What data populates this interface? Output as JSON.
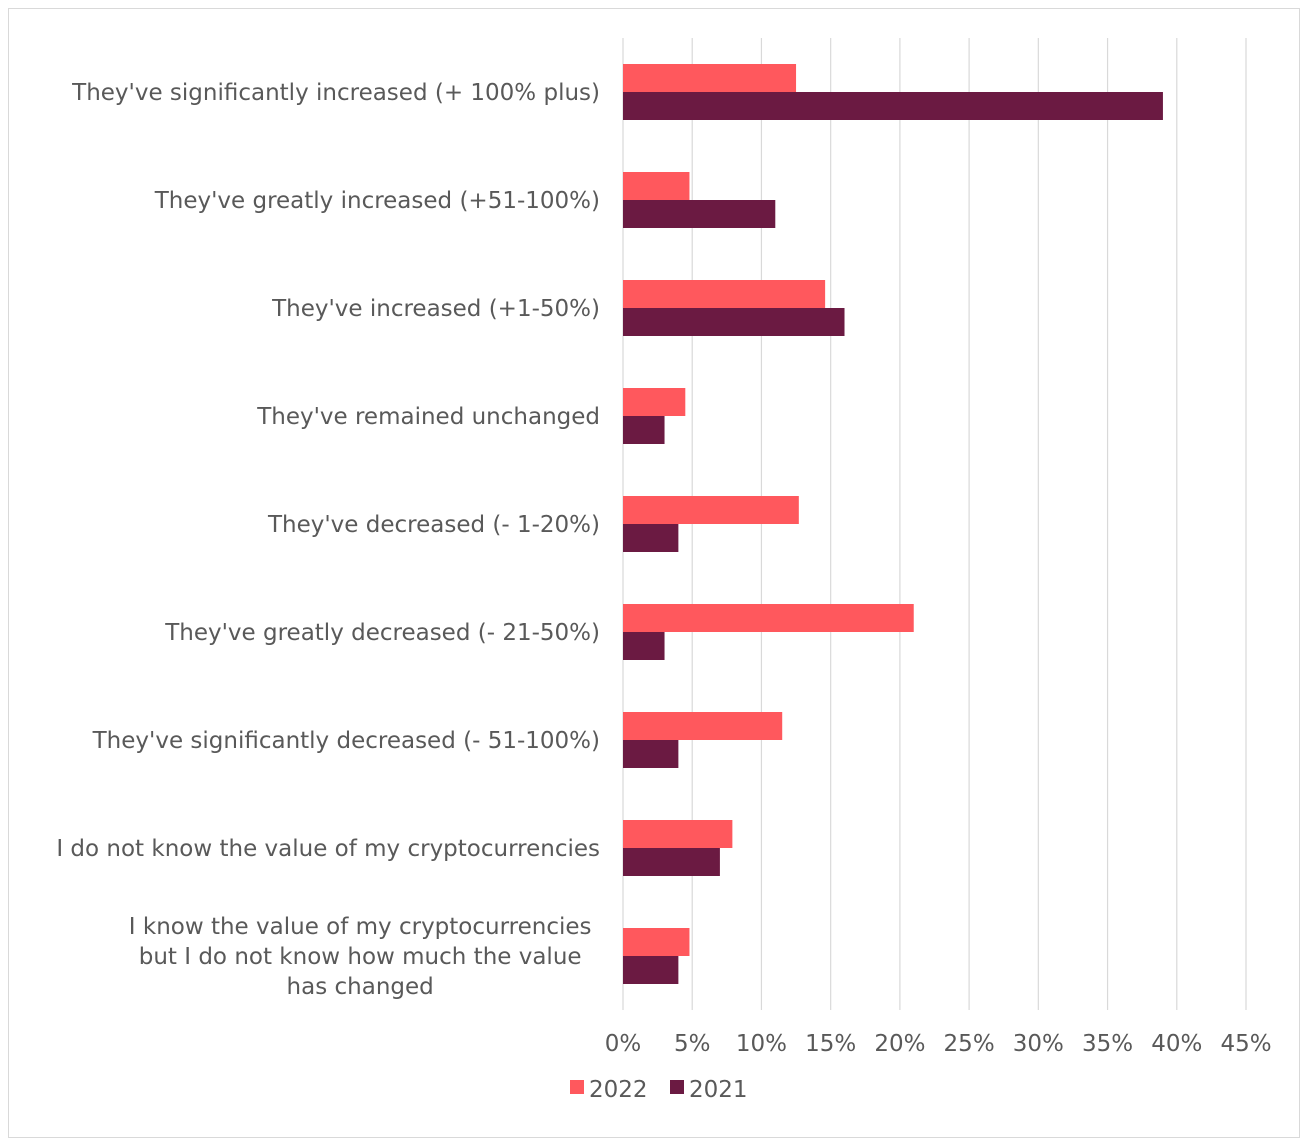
{
  "chart_data": {
    "type": "bar",
    "orientation": "horizontal",
    "categories": [
      [
        "They've significantly increased (+ 100% plus)"
      ],
      [
        "They've greatly increased (+51-100%)"
      ],
      [
        "They've increased (+1-50%)"
      ],
      [
        "They've remained unchanged"
      ],
      [
        "They've decreased (- 1-20%)"
      ],
      [
        "They've greatly decreased (- 21-50%)"
      ],
      [
        "They've significantly decreased (- 51-100%)"
      ],
      [
        "I do not know the value of my cryptocurrencies"
      ],
      [
        "I know the value of my cryptocurrencies",
        "but I do not know how much the value",
        "has changed"
      ]
    ],
    "series": [
      {
        "name": "2022",
        "color": "#ff585d",
        "values": [
          12.5,
          4.8,
          14.6,
          4.5,
          12.7,
          21.0,
          11.5,
          7.9,
          4.8
        ]
      },
      {
        "name": "2021",
        "color": "#6b1a42",
        "values": [
          39.0,
          11.0,
          16.0,
          3.0,
          4.0,
          3.0,
          4.0,
          7.0,
          4.0
        ]
      }
    ],
    "xlim": [
      0,
      45
    ],
    "xticks": [
      "0%",
      "5%",
      "10%",
      "15%",
      "20%",
      "25%",
      "30%",
      "35%",
      "40%",
      "45%"
    ],
    "grid": true,
    "legend_position": "bottom"
  }
}
